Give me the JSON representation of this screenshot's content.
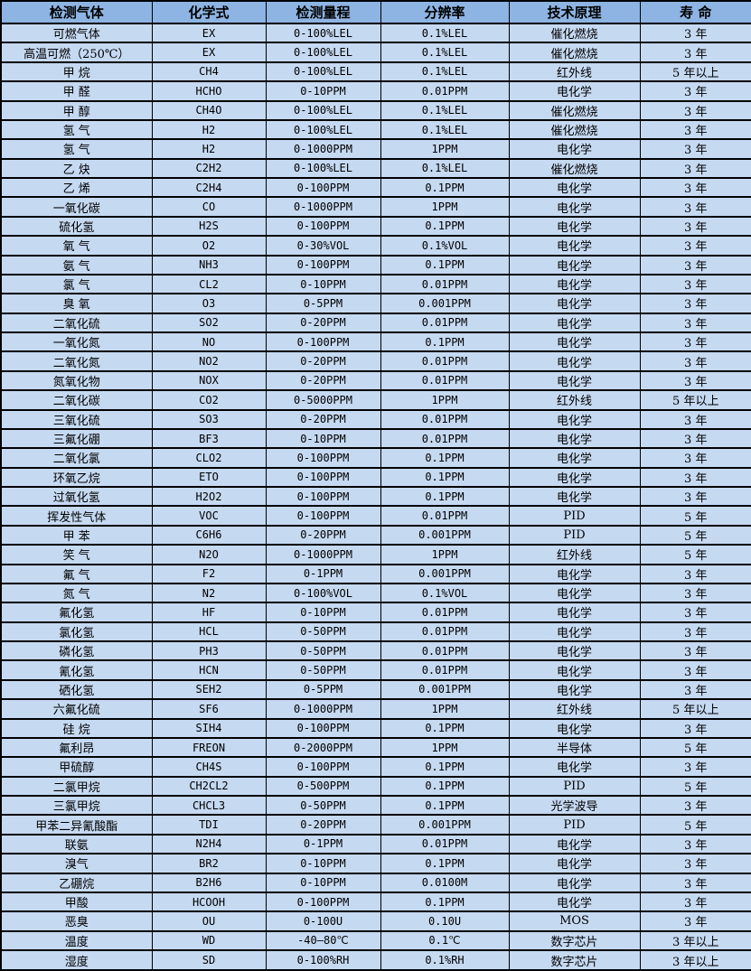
{
  "table": {
    "colors": {
      "header_bg": "#8DB4E2",
      "row_bg": "#C5D9F1",
      "border": "#000000",
      "text": "#000000"
    },
    "headers": [
      "检测气体",
      "化学式",
      "检测量程",
      "分辨率",
      "技术原理",
      "寿 命"
    ],
    "rows": [
      [
        "可燃气体",
        "EX",
        "0-100%LEL",
        "0.1%LEL",
        "催化燃烧",
        "3 年"
      ],
      [
        "高温可燃（250℃）",
        "EX",
        "0-100%LEL",
        "0.1%LEL",
        "催化燃烧",
        "3 年"
      ],
      [
        "甲 烷",
        "CH4",
        "0-100%LEL",
        "0.1%LEL",
        "红外线",
        "5 年以上"
      ],
      [
        "甲 醛",
        "HCHO",
        "0-10PPM",
        "0.01PPM",
        "电化学",
        "3 年"
      ],
      [
        "甲 醇",
        "CH4O",
        "0-100%LEL",
        "0.1%LEL",
        "催化燃烧",
        "3 年"
      ],
      [
        "氢 气",
        "H2",
        "0-100%LEL",
        "0.1%LEL",
        "催化燃烧",
        "3 年"
      ],
      [
        "氢 气",
        "H2",
        "0-1000PPM",
        "1PPM",
        "电化学",
        "3 年"
      ],
      [
        "乙 炔",
        "C2H2",
        "0-100%LEL",
        "0.1%LEL",
        "催化燃烧",
        "3 年"
      ],
      [
        "乙 烯",
        "C2H4",
        "0-100PPM",
        "0.1PPM",
        "电化学",
        "3 年"
      ],
      [
        "一氧化碳",
        "CO",
        "0-1000PPM",
        "1PPM",
        "电化学",
        "3 年"
      ],
      [
        "硫化氢",
        "H2S",
        "0-100PPM",
        "0.1PPM",
        "电化学",
        "3 年"
      ],
      [
        "氧 气",
        "O2",
        "0-30%VOL",
        "0.1%VOL",
        "电化学",
        "3 年"
      ],
      [
        "氨 气",
        "NH3",
        "0-100PPM",
        "0.1PPM",
        "电化学",
        "3 年"
      ],
      [
        "氯 气",
        "CL2",
        "0-10PPM",
        "0.01PPM",
        "电化学",
        "3 年"
      ],
      [
        "臭 氧",
        "O3",
        "0-5PPM",
        "0.001PPM",
        "电化学",
        "3 年"
      ],
      [
        "二氧化硫",
        "SO2",
        "0-20PPM",
        "0.01PPM",
        "电化学",
        "3 年"
      ],
      [
        "一氧化氮",
        "NO",
        "0-100PPM",
        "0.1PPM",
        "电化学",
        "3 年"
      ],
      [
        "二氧化氮",
        "NO2",
        "0-20PPM",
        "0.01PPM",
        "电化学",
        "3 年"
      ],
      [
        "氮氧化物",
        "NOX",
        "0-20PPM",
        "0.01PPM",
        "电化学",
        "3 年"
      ],
      [
        "二氧化碳",
        "CO2",
        "0-5000PPM",
        "1PPM",
        "红外线",
        "5 年以上"
      ],
      [
        "三氧化硫",
        "SO3",
        "0-20PPM",
        "0.01PPM",
        "电化学",
        "3 年"
      ],
      [
        "三氟化硼",
        "BF3",
        "0-10PPM",
        "0.01PPM",
        "电化学",
        "3 年"
      ],
      [
        "二氧化氯",
        "CLO2",
        "0-100PPM",
        "0.1PPM",
        "电化学",
        "3 年"
      ],
      [
        "环氧乙烷",
        "ETO",
        "0-100PPM",
        "0.1PPM",
        "电化学",
        "3 年"
      ],
      [
        "过氧化氢",
        "H2O2",
        "0-100PPM",
        "0.1PPM",
        "电化学",
        "3 年"
      ],
      [
        "挥发性气体",
        "VOC",
        "0-100PPM",
        "0.01PPM",
        "PID",
        "5 年"
      ],
      [
        "甲 苯",
        "C6H6",
        "0-20PPM",
        "0.001PPM",
        "PID",
        "5 年"
      ],
      [
        "笑 气",
        "N2O",
        "0-1000PPM",
        "1PPM",
        "红外线",
        "5 年"
      ],
      [
        "氟 气",
        "F2",
        "0-1PPM",
        "0.001PPM",
        "电化学",
        "3 年"
      ],
      [
        "氮 气",
        "N2",
        "0-100%VOL",
        "0.1%VOL",
        "电化学",
        "3 年"
      ],
      [
        "氟化氢",
        "HF",
        "0-10PPM",
        "0.01PPM",
        "电化学",
        "3 年"
      ],
      [
        "氯化氢",
        "HCL",
        "0-50PPM",
        "0.01PPM",
        "电化学",
        "3 年"
      ],
      [
        "磷化氢",
        "PH3",
        "0-50PPM",
        "0.01PPM",
        "电化学",
        "3 年"
      ],
      [
        "氰化氢",
        "HCN",
        "0-50PPM",
        "0.01PPM",
        "电化学",
        "3 年"
      ],
      [
        "硒化氢",
        "SEH2",
        "0-5PPM",
        "0.001PPM",
        "电化学",
        "3 年"
      ],
      [
        "六氟化硫",
        "SF6",
        "0-1000PPM",
        "1PPM",
        "红外线",
        "5 年以上"
      ],
      [
        "硅 烷",
        "SIH4",
        "0-100PPM",
        "0.1PPM",
        "电化学",
        "3 年"
      ],
      [
        "氟利昂",
        "FREON",
        "0-2000PPM",
        "1PPM",
        "半导体",
        "5 年"
      ],
      [
        "甲硫醇",
        "CH4S",
        "0-100PPM",
        "0.1PPM",
        "电化学",
        "3 年"
      ],
      [
        "二氯甲烷",
        "CH2CL2",
        "0-500PPM",
        "0.1PPM",
        "PID",
        "5 年"
      ],
      [
        "三氯甲烷",
        "CHCL3",
        "0-50PPM",
        "0.1PPM",
        "光学波导",
        "3 年"
      ],
      [
        "甲苯二异氰酸酯",
        "TDI",
        "0-20PPM",
        "0.001PPM",
        "PID",
        "5 年"
      ],
      [
        "联氨",
        "N2H4",
        "0-1PPM",
        "0.01PPM",
        "电化学",
        "3 年"
      ],
      [
        "溴气",
        "BR2",
        "0-10PPM",
        "0.1PPM",
        "电化学",
        "3 年"
      ],
      [
        "乙硼烷",
        "B2H6",
        "0-10PPM",
        "0.0100M",
        "电化学",
        "3 年"
      ],
      [
        "甲酸",
        "HCOOH",
        "0-100PPM",
        "0.1PPM",
        "电化学",
        "3 年"
      ],
      [
        "恶臭",
        "OU",
        "0-100U",
        "0.10U",
        "MOS",
        "3 年"
      ],
      [
        "温度",
        "WD",
        "-40—80℃",
        "0.1℃",
        "数字芯片",
        "3 年以上"
      ],
      [
        "湿度",
        "SD",
        "0-100%RH",
        "0.1%RH",
        "数字芯片",
        "3 年以上"
      ]
    ]
  }
}
